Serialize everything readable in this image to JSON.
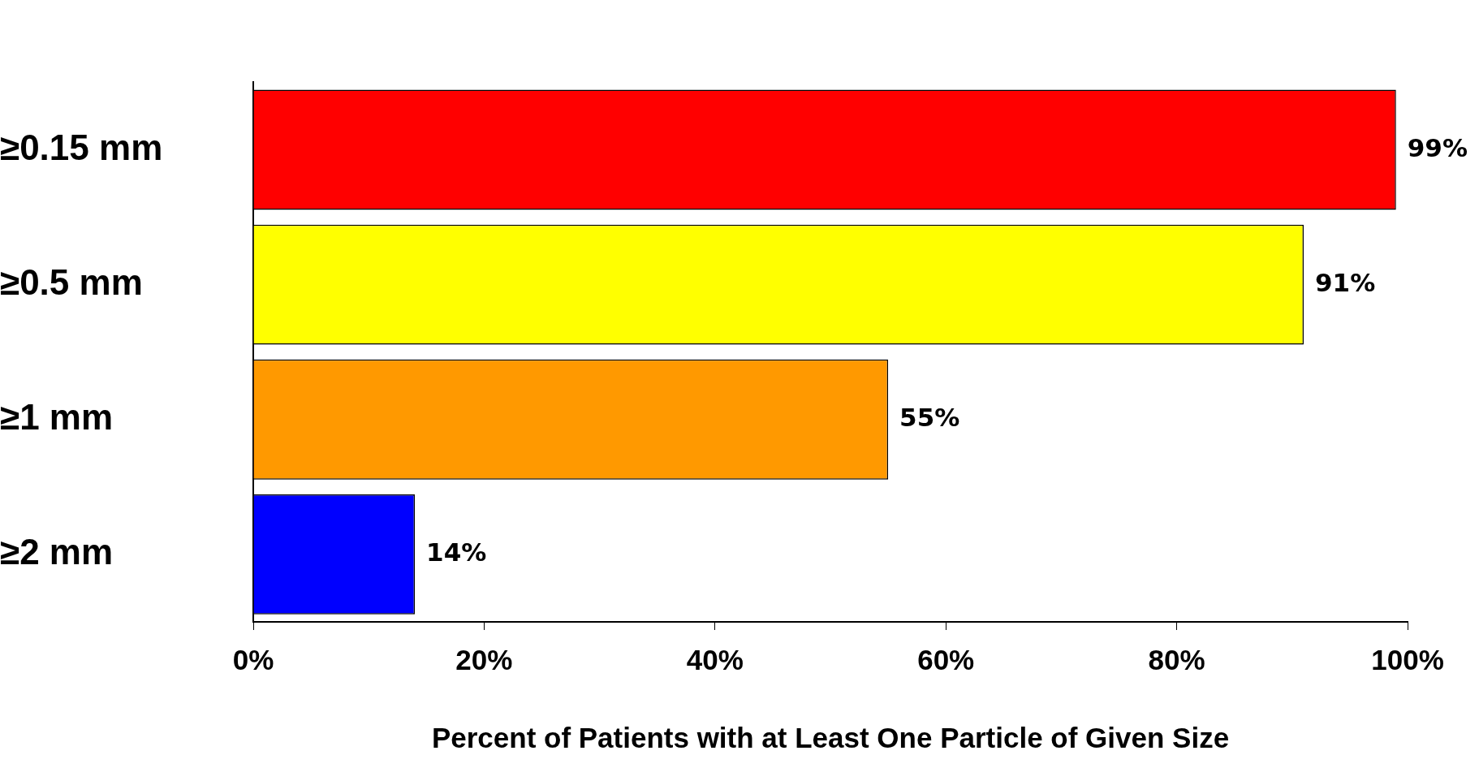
{
  "chart_data": {
    "type": "bar",
    "orientation": "horizontal",
    "xlabel": "Percent of Patients with at Least One Particle of Given Size",
    "categories": [
      "≥0.15 mm",
      "≥0.5 mm",
      "≥1 mm",
      "≥2 mm"
    ],
    "values": [
      99,
      91,
      55,
      14
    ],
    "colors": [
      "#ff0000",
      "#ffff00",
      "#ff9900",
      "#0000ff"
    ],
    "value_labels": [
      "99%",
      "91%",
      "55%",
      "14%"
    ],
    "xlim": [
      0,
      100
    ],
    "xticks": [
      {
        "value": 0,
        "label": "0%"
      },
      {
        "value": 20,
        "label": "20%"
      },
      {
        "value": 40,
        "label": "40%"
      },
      {
        "value": 60,
        "label": "60%"
      },
      {
        "value": 80,
        "label": "80%"
      },
      {
        "value": 100,
        "label": "100%"
      }
    ],
    "grid": false,
    "legend": false
  }
}
